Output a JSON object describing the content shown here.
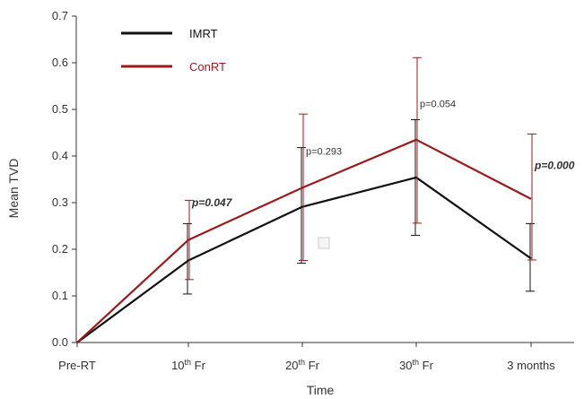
{
  "chart_data": {
    "type": "line",
    "xlabel": "Time",
    "ylabel": "Mean TVD",
    "ylim": [
      0,
      0.7
    ],
    "yticks": [
      "0.0",
      "0.1",
      "0.2",
      "0.3",
      "0.4",
      "0.5",
      "0.6",
      "0.7"
    ],
    "categories": [
      {
        "base": "Pre-RT",
        "sup": ""
      },
      {
        "base": "10",
        "sup": "th",
        "rest": " Fr"
      },
      {
        "base": "20",
        "sup": "th",
        "rest": " Fr"
      },
      {
        "base": "30",
        "sup": "th",
        "rest": " Fr"
      },
      {
        "base": "3 months",
        "sup": ""
      }
    ],
    "series": [
      {
        "name": "IMRT",
        "color": "#111111",
        "values": [
          0,
          0.176,
          0.291,
          0.354,
          0.18
        ],
        "err_low": [
          null,
          0.104,
          0.17,
          0.23,
          0.11
        ],
        "err_high": [
          null,
          0.255,
          0.418,
          0.478,
          0.255
        ]
      },
      {
        "name": "ConRT",
        "color": "#9b1b1b",
        "values": [
          0,
          0.22,
          0.332,
          0.435,
          0.308
        ],
        "err_low": [
          null,
          0.135,
          0.176,
          0.256,
          0.177
        ],
        "err_high": [
          null,
          0.305,
          0.49,
          0.611,
          0.447
        ]
      }
    ],
    "annotations": [
      {
        "index": 1,
        "y": 0.292,
        "text": "p=0.047",
        "bold": true
      },
      {
        "index": 2,
        "y": 0.403,
        "text": "p=0.293",
        "bold": false
      },
      {
        "index": 3,
        "y": 0.505,
        "text": "p=0.054",
        "bold": false
      },
      {
        "index": 4,
        "y": 0.372,
        "text": "p=0.000",
        "bold": true
      }
    ]
  }
}
